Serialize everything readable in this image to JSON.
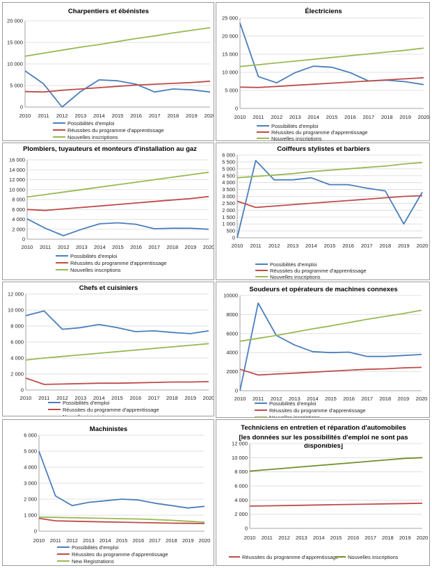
{
  "chart_data": [
    {
      "type": "line",
      "title": "Charpentiers et ébénistes",
      "x": [
        "2010",
        "2011",
        "2012",
        "2013",
        "2014",
        "2015",
        "2016",
        "2017",
        "2018",
        "2019",
        "2020"
      ],
      "ylim": [
        0,
        20000
      ],
      "yticks": [
        "0",
        "5 000",
        "10 000",
        "15 000",
        "20 000"
      ],
      "ytick_values": [
        0,
        5000,
        10000,
        15000,
        20000
      ],
      "series": [
        {
          "name": "Possibilités d'emploi",
          "color": "#4a7ebb",
          "values": [
            8400,
            5400,
            0,
            3600,
            6300,
            6100,
            5300,
            3500,
            4200,
            4000,
            3500
          ]
        },
        {
          "name": "Réussites du programme d'apprentissage",
          "color": "#be4b48",
          "values": [
            3600,
            3500,
            3900,
            4200,
            4500,
            4800,
            5100,
            5300,
            5500,
            5700,
            6000
          ]
        },
        {
          "name": "Nouvelles inscriptions",
          "color": "#98b954",
          "values": [
            11800,
            12500,
            13200,
            13900,
            14500,
            15200,
            15900,
            16500,
            17200,
            17800,
            18400
          ]
        }
      ]
    },
    {
      "type": "line",
      "title": "Électriciens",
      "x": [
        "2010",
        "2011",
        "2012",
        "2013",
        "2014",
        "2015",
        "2016",
        "2017",
        "2018",
        "2019",
        "2020"
      ],
      "ylim": [
        0,
        25000
      ],
      "yticks": [
        "0",
        "5 000",
        "10 000",
        "15 000",
        "20 000",
        "25 000"
      ],
      "ytick_values": [
        0,
        5000,
        10000,
        15000,
        20000,
        25000
      ],
      "series": [
        {
          "name": "Possibilités d'emploi",
          "color": "#4a7ebb",
          "values": [
            23600,
            8800,
            7100,
            9900,
            11700,
            11400,
            9900,
            7600,
            7800,
            7400,
            6600
          ]
        },
        {
          "name": "Réussites du programme d'apprentissage",
          "color": "#be4b48",
          "values": [
            5900,
            5800,
            6100,
            6400,
            6700,
            7000,
            7300,
            7600,
            7900,
            8200,
            8500
          ]
        },
        {
          "name": "Nouvelles inscriptions",
          "color": "#98b954",
          "values": [
            11600,
            12100,
            12600,
            13100,
            13600,
            14100,
            14600,
            15100,
            15600,
            16100,
            16700
          ]
        }
      ]
    },
    {
      "type": "line",
      "title": "Plombiers, tuyauteurs et monteurs d'installation au gaz",
      "x": [
        "2010",
        "2011",
        "2012",
        "2013",
        "2014",
        "2015",
        "2016",
        "2017",
        "2018",
        "2019",
        "2020"
      ],
      "ylim": [
        0,
        16000
      ],
      "yticks": [
        "0",
        "2 000",
        "4 000",
        "6 000",
        "8 000",
        "10 000",
        "12 000",
        "14 000",
        "16 000"
      ],
      "ytick_values": [
        0,
        2000,
        4000,
        6000,
        8000,
        10000,
        12000,
        14000,
        16000
      ],
      "series": [
        {
          "name": "Possibilités d'emploi",
          "color": "#4a7ebb",
          "values": [
            4100,
            2200,
            700,
            2000,
            3100,
            3300,
            3000,
            2100,
            2200,
            2200,
            2000
          ]
        },
        {
          "name": "Réussites du programme d'apprentissage",
          "color": "#be4b48",
          "values": [
            6000,
            5800,
            6100,
            6400,
            6700,
            7000,
            7300,
            7600,
            7900,
            8200,
            8600
          ]
        },
        {
          "name": "Nouvelles inscriptions",
          "color": "#98b954",
          "values": [
            8500,
            9000,
            9500,
            10000,
            10500,
            11000,
            11500,
            12000,
            12500,
            13000,
            13500
          ]
        }
      ]
    },
    {
      "type": "line",
      "title": "Coiffeurs stylistes et barbiers",
      "x": [
        "2010",
        "2011",
        "2012",
        "2013",
        "2014",
        "2015",
        "2016",
        "2017",
        "2018",
        "2019",
        "2020"
      ],
      "ylim": [
        0,
        6000
      ],
      "yticks": [
        "0",
        "500",
        "1 000",
        "1 500",
        "2 000",
        "2 500",
        "3 000",
        "3 500",
        "4 000",
        "4 500",
        "5 000",
        "5 500",
        "6 000"
      ],
      "ytick_values": [
        0,
        500,
        1000,
        1500,
        2000,
        2500,
        3000,
        3500,
        4000,
        4500,
        5000,
        5500,
        6000
      ],
      "series": [
        {
          "name": "Possibilités d'emploi",
          "color": "#4a7ebb",
          "values": [
            0,
            5600,
            4200,
            4200,
            4350,
            3850,
            3850,
            3600,
            3400,
            1000,
            3300
          ]
        },
        {
          "name": "Réussites du programme d'apprentissage",
          "color": "#be4b48",
          "values": [
            2650,
            2200,
            2300,
            2400,
            2500,
            2600,
            2700,
            2800,
            2900,
            3000,
            3050
          ]
        },
        {
          "name": "Nouvelles inscriptions",
          "color": "#98b954",
          "values": [
            4350,
            4450,
            4550,
            4650,
            4800,
            4900,
            5000,
            5100,
            5200,
            5350,
            5450
          ]
        }
      ]
    },
    {
      "type": "line",
      "title": "Chefs et cuisiniers",
      "x": [
        "2010",
        "2011",
        "2012",
        "2013",
        "2014",
        "2015",
        "2016",
        "2017",
        "2018",
        "2019",
        "2020"
      ],
      "ylim": [
        0,
        12000
      ],
      "yticks": [
        "0",
        "2 000",
        "4 000",
        "6 000",
        "8 000",
        "10 000",
        "12 000"
      ],
      "ytick_values": [
        0,
        2000,
        4000,
        6000,
        8000,
        10000,
        12000
      ],
      "series": [
        {
          "name": "Possibilités d'emploi",
          "color": "#4a7ebb",
          "values": [
            9300,
            9900,
            7600,
            7800,
            8200,
            7800,
            7300,
            7400,
            7200,
            7050,
            7400
          ]
        },
        {
          "name": "Réussites du programme d'apprentissage",
          "color": "#be4b48",
          "values": [
            1500,
            700,
            750,
            800,
            850,
            850,
            900,
            950,
            1000,
            1000,
            1050
          ]
        },
        {
          "name": "Nouvelles inscriptions",
          "color": "#98b954",
          "values": [
            3750,
            4000,
            4200,
            4400,
            4600,
            4800,
            5000,
            5200,
            5400,
            5600,
            5800
          ]
        }
      ]
    },
    {
      "type": "line",
      "title": "Soudeurs et opérateurs de machines connexes",
      "x": [
        "2010",
        "2011",
        "2012",
        "2013",
        "2014",
        "2015",
        "2016",
        "2017",
        "2018",
        "2019",
        "2020"
      ],
      "ylim": [
        0,
        10000
      ],
      "yticks": [
        "0",
        "2000",
        "4000",
        "6000",
        "8000",
        "10000"
      ],
      "ytick_values": [
        0,
        2000,
        4000,
        6000,
        8000,
        10000
      ],
      "series": [
        {
          "name": "Possibilités d'emploi",
          "color": "#4a7ebb",
          "values": [
            0,
            9200,
            5800,
            4800,
            4100,
            4000,
            4050,
            3600,
            3600,
            3700,
            3800
          ]
        },
        {
          "name": "Réussites du programme d'apprentissage",
          "color": "#be4b48",
          "values": [
            2250,
            1650,
            1750,
            1850,
            1950,
            2050,
            2150,
            2250,
            2300,
            2400,
            2450
          ]
        },
        {
          "name": "Nouvelles inscriptions",
          "color": "#98b954",
          "values": [
            5200,
            5500,
            5800,
            6150,
            6500,
            6800,
            7150,
            7500,
            7800,
            8100,
            8450
          ]
        }
      ]
    },
    {
      "type": "line",
      "title": "Machinistes",
      "x": [
        "2010",
        "2011",
        "2012",
        "2013",
        "2014",
        "2015",
        "2016",
        "2017",
        "2018",
        "2019",
        "2020"
      ],
      "ylim": [
        0,
        6000
      ],
      "yticks": [
        "0",
        "1 000",
        "2 000",
        "3 000",
        "4 000",
        "5 000",
        "6 000"
      ],
      "ytick_values": [
        0,
        1000,
        2000,
        3000,
        4000,
        5000,
        6000
      ],
      "series": [
        {
          "name": "Possibilités d'emploi",
          "color": "#4a7ebb",
          "values": [
            5000,
            2200,
            1600,
            1800,
            1900,
            2000,
            1950,
            1750,
            1600,
            1450,
            1550
          ]
        },
        {
          "name": "Réussites du programme d'apprentissage",
          "color": "#be4b48",
          "values": [
            800,
            650,
            620,
            600,
            580,
            560,
            540,
            520,
            500,
            490,
            480
          ]
        },
        {
          "name": "New Registrations",
          "color": "#98b954",
          "values": [
            880,
            860,
            840,
            820,
            800,
            780,
            760,
            720,
            680,
            620,
            560
          ]
        }
      ]
    },
    {
      "type": "line",
      "title": "Techniciens en entretien et réparation d'automobiles",
      "subtitle1": "[les données sur les possibilités d'emploi ne sont pas",
      "subtitle2": "disponibles]",
      "x": [
        "2010",
        "2011",
        "2012",
        "2013",
        "2014",
        "2015",
        "2016",
        "2017",
        "2018",
        "2019",
        "2020"
      ],
      "ylim": [
        0,
        12000
      ],
      "yticks": [
        "0",
        "2 000",
        "4 000",
        "6 000",
        "8 000",
        "10 000",
        "12 000"
      ],
      "ytick_values": [
        0,
        2000,
        4000,
        6000,
        8000,
        10000,
        12000
      ],
      "series": [
        {
          "name": "Réussites du programme d'apprentissage",
          "color": "#be4b48",
          "values": [
            3150,
            3190,
            3230,
            3270,
            3310,
            3350,
            3390,
            3430,
            3470,
            3510,
            3550
          ]
        },
        {
          "name": "Nouvelles inscriptions",
          "color": "#6e8f2a",
          "values": [
            8100,
            8300,
            8500,
            8700,
            8900,
            9100,
            9300,
            9500,
            9700,
            9900,
            10000
          ]
        }
      ]
    }
  ]
}
